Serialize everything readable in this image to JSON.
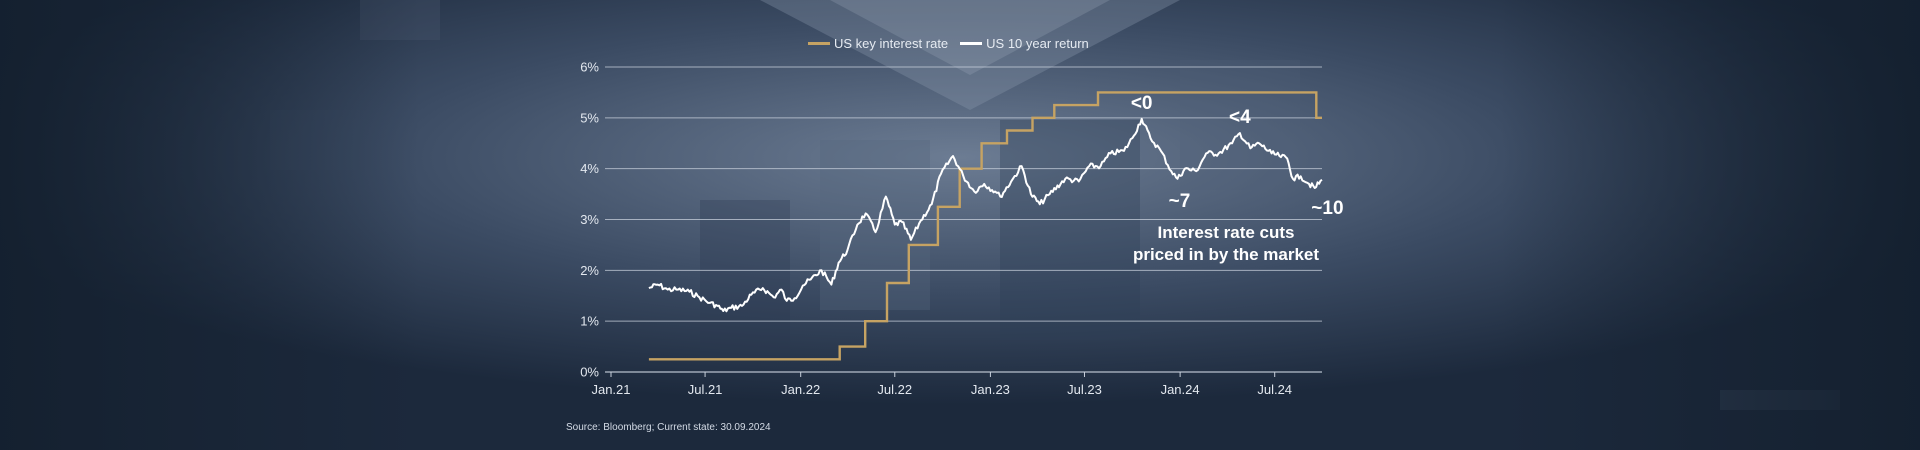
{
  "colors": {
    "background": "#24334a",
    "key_rate": "#c6a363",
    "ten_year": "#ffffff",
    "grid": "#c8d0dc"
  },
  "legend": {
    "key_rate_label": "US key interest rate",
    "ten_year_label": "US 10 year return"
  },
  "source": "Source: Bloomberg; Current state: 30.09.2024",
  "chart_data": {
    "type": "line",
    "title": "",
    "xlabel": "",
    "ylabel": "",
    "ylim": [
      0,
      6
    ],
    "yticks": [
      "0%",
      "1%",
      "2%",
      "3%",
      "4%",
      "5%",
      "6%"
    ],
    "xlim": [
      "2021-01-01",
      "2024-09-30"
    ],
    "xticks": [
      {
        "label": "Jan.21",
        "date": "2021-01-01"
      },
      {
        "label": "Jul.21",
        "date": "2021-07-01"
      },
      {
        "label": "Jan.22",
        "date": "2022-01-01"
      },
      {
        "label": "Jul.22",
        "date": "2022-07-01"
      },
      {
        "label": "Jan.23",
        "date": "2023-01-01"
      },
      {
        "label": "Jul.23",
        "date": "2023-07-01"
      },
      {
        "label": "Jan.24",
        "date": "2024-01-01"
      },
      {
        "label": "Jul.24",
        "date": "2024-07-01"
      }
    ],
    "grid": true,
    "legend_position": "top-center",
    "series": [
      {
        "name": "US key interest rate",
        "step": true,
        "points": [
          [
            "2021-03-15",
            0.25
          ],
          [
            "2022-03-17",
            0.5
          ],
          [
            "2022-05-05",
            1.0
          ],
          [
            "2022-06-16",
            1.75
          ],
          [
            "2022-07-28",
            2.5
          ],
          [
            "2022-09-22",
            3.25
          ],
          [
            "2022-11-03",
            4.0
          ],
          [
            "2022-12-15",
            4.5
          ],
          [
            "2023-02-02",
            4.75
          ],
          [
            "2023-03-23",
            5.0
          ],
          [
            "2023-05-04",
            5.25
          ],
          [
            "2023-07-27",
            5.5
          ],
          [
            "2024-09-19",
            5.0
          ],
          [
            "2024-09-30",
            5.0
          ]
        ]
      },
      {
        "name": "US 10 year return",
        "step": false,
        "points": [
          [
            "2021-03-15",
            1.65
          ],
          [
            "2021-04-01",
            1.72
          ],
          [
            "2021-04-20",
            1.62
          ],
          [
            "2021-05-10",
            1.62
          ],
          [
            "2021-06-01",
            1.58
          ],
          [
            "2021-06-20",
            1.47
          ],
          [
            "2021-07-10",
            1.36
          ],
          [
            "2021-07-25",
            1.3
          ],
          [
            "2021-08-05",
            1.2
          ],
          [
            "2021-08-20",
            1.26
          ],
          [
            "2021-09-10",
            1.3
          ],
          [
            "2021-09-28",
            1.52
          ],
          [
            "2021-10-20",
            1.65
          ],
          [
            "2021-11-10",
            1.47
          ],
          [
            "2021-11-25",
            1.62
          ],
          [
            "2021-12-05",
            1.4
          ],
          [
            "2021-12-20",
            1.45
          ],
          [
            "2022-01-05",
            1.7
          ],
          [
            "2022-01-20",
            1.82
          ],
          [
            "2022-02-10",
            2.0
          ],
          [
            "2022-03-01",
            1.72
          ],
          [
            "2022-03-15",
            2.15
          ],
          [
            "2022-04-01",
            2.4
          ],
          [
            "2022-04-20",
            2.9
          ],
          [
            "2022-05-06",
            3.12
          ],
          [
            "2022-05-25",
            2.75
          ],
          [
            "2022-06-14",
            3.45
          ],
          [
            "2022-07-01",
            2.9
          ],
          [
            "2022-07-15",
            2.95
          ],
          [
            "2022-08-01",
            2.6
          ],
          [
            "2022-08-20",
            2.98
          ],
          [
            "2022-09-10",
            3.3
          ],
          [
            "2022-09-28",
            3.9
          ],
          [
            "2022-10-21",
            4.25
          ],
          [
            "2022-11-10",
            3.85
          ],
          [
            "2022-12-01",
            3.55
          ],
          [
            "2022-12-20",
            3.7
          ],
          [
            "2023-01-10",
            3.55
          ],
          [
            "2023-01-20",
            3.45
          ],
          [
            "2023-02-10",
            3.75
          ],
          [
            "2023-03-02",
            4.05
          ],
          [
            "2023-03-20",
            3.5
          ],
          [
            "2023-04-06",
            3.3
          ],
          [
            "2023-04-25",
            3.5
          ],
          [
            "2023-05-25",
            3.8
          ],
          [
            "2023-06-20",
            3.75
          ],
          [
            "2023-07-10",
            4.05
          ],
          [
            "2023-08-01",
            4.05
          ],
          [
            "2023-08-20",
            4.3
          ],
          [
            "2023-09-15",
            4.35
          ],
          [
            "2023-10-01",
            4.6
          ],
          [
            "2023-10-19",
            4.98
          ],
          [
            "2023-11-05",
            4.6
          ],
          [
            "2023-11-25",
            4.35
          ],
          [
            "2023-12-15",
            3.95
          ],
          [
            "2023-12-27",
            3.8
          ],
          [
            "2024-01-10",
            4.0
          ],
          [
            "2024-02-01",
            3.95
          ],
          [
            "2024-02-20",
            4.3
          ],
          [
            "2024-03-15",
            4.3
          ],
          [
            "2024-04-10",
            4.5
          ],
          [
            "2024-04-25",
            4.7
          ],
          [
            "2024-05-15",
            4.4
          ],
          [
            "2024-06-01",
            4.5
          ],
          [
            "2024-06-25",
            4.3
          ],
          [
            "2024-07-10",
            4.25
          ],
          [
            "2024-07-25",
            4.2
          ],
          [
            "2024-08-05",
            3.8
          ],
          [
            "2024-08-20",
            3.85
          ],
          [
            "2024-09-05",
            3.7
          ],
          [
            "2024-09-16",
            3.62
          ],
          [
            "2024-09-30",
            3.78
          ]
        ]
      }
    ],
    "annotations": [
      {
        "text": "<0",
        "date": "2023-10-19",
        "value": 4.98
      },
      {
        "text": "~7",
        "date": "2023-12-27",
        "value": 3.8
      },
      {
        "text": "<4",
        "date": "2024-04-25",
        "value": 4.7
      },
      {
        "text": "~10",
        "date": "2024-09-25",
        "value": 3.62
      }
    ],
    "note": [
      "Interest rate cuts",
      "priced in by the market"
    ]
  }
}
